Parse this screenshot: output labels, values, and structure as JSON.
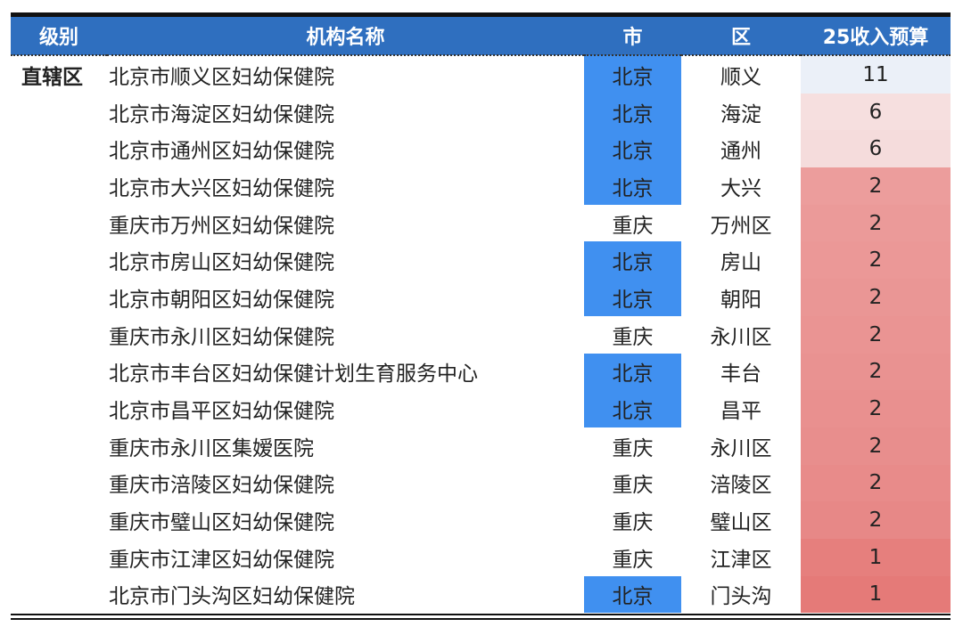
{
  "headers": {
    "level": "级别",
    "name": "机构名称",
    "city": "市",
    "district": "区",
    "budget": "25收入预算"
  },
  "colors": {
    "header": "#2f6fbf",
    "beijing_highlight": "#4090f0"
  },
  "rows": [
    {
      "level": "直辖区",
      "name": "北京市顺义区妇幼保健院",
      "city": "北京",
      "district": "顺义",
      "budget": "11",
      "budget_color": "#ebf0f8"
    },
    {
      "level": "",
      "name": "北京市海淀区妇幼保健院",
      "city": "北京",
      "district": "海淀",
      "budget": "6",
      "budget_color": "#f6dfdf"
    },
    {
      "level": "",
      "name": "北京市通州区妇幼保健院",
      "city": "北京",
      "district": "通州",
      "budget": "6",
      "budget_color": "#f5dcdc"
    },
    {
      "level": "",
      "name": "北京市大兴区妇幼保健院",
      "city": "北京",
      "district": "大兴",
      "budget": "2",
      "budget_color": "#ec9d9c"
    },
    {
      "level": "",
      "name": "重庆市万州区妇幼保健院",
      "city": "重庆",
      "district": "万州区",
      "budget": "2",
      "budget_color": "#eb9a99"
    },
    {
      "level": "",
      "name": "北京市房山区妇幼保健院",
      "city": "北京",
      "district": "房山",
      "budget": "2",
      "budget_color": "#eb9897"
    },
    {
      "level": "",
      "name": "北京市朝阳区妇幼保健院",
      "city": "北京",
      "district": "朝阳",
      "budget": "2",
      "budget_color": "#ea9695"
    },
    {
      "level": "",
      "name": "重庆市永川区妇幼保健院",
      "city": "重庆",
      "district": "永川区",
      "budget": "2",
      "budget_color": "#ea9493"
    },
    {
      "level": "",
      "name": "北京市丰台区妇幼保健计划生育服务中心",
      "city": "北京",
      "district": "丰台",
      "budget": "2",
      "budget_color": "#e99291"
    },
    {
      "level": "",
      "name": "北京市昌平区妇幼保健院",
      "city": "北京",
      "district": "昌平",
      "budget": "2",
      "budget_color": "#e9908f"
    },
    {
      "level": "",
      "name": "重庆市永川区集嫒医院",
      "city": "重庆",
      "district": "永川区",
      "budget": "2",
      "budget_color": "#e88e8d"
    },
    {
      "level": "",
      "name": "重庆市涪陵区妇幼保健院",
      "city": "重庆",
      "district": "涪陵区",
      "budget": "2",
      "budget_color": "#e88b8a"
    },
    {
      "level": "",
      "name": "重庆市璧山区妇幼保健院",
      "city": "重庆",
      "district": "璧山区",
      "budget": "2",
      "budget_color": "#e78887"
    },
    {
      "level": "",
      "name": "重庆市江津区妇幼保健院",
      "city": "重庆",
      "district": "江津区",
      "budget": "1",
      "budget_color": "#e67f7d"
    },
    {
      "level": "",
      "name": "北京市门头沟区妇幼保健院",
      "city": "北京",
      "district": "门头沟",
      "budget": "1",
      "budget_color": "#e57a78"
    }
  ]
}
